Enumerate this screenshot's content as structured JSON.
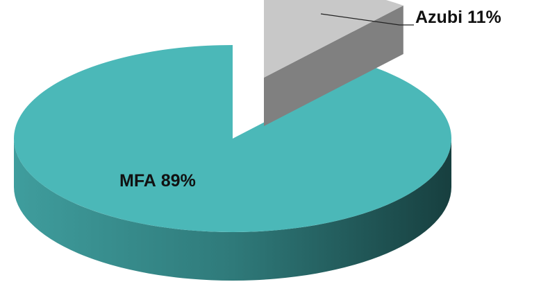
{
  "chart_data": {
    "type": "pie",
    "categories": [
      "MFA",
      "Azubi"
    ],
    "values": [
      89,
      11
    ],
    "value_labels": [
      "89%",
      "11%"
    ],
    "colors": [
      "#4bb8b8",
      "#c8c8c8"
    ]
  }
}
